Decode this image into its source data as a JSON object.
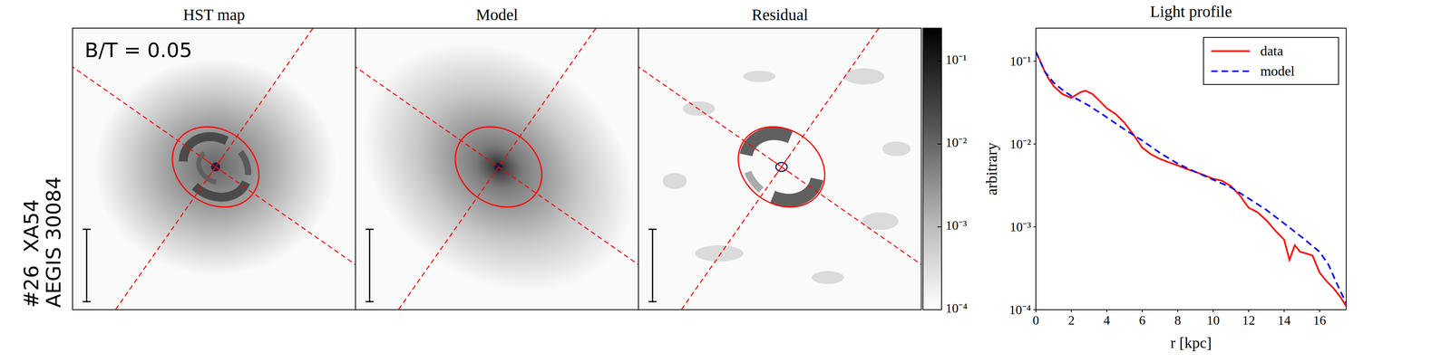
{
  "figure_label": [
    "#26  XA54",
    "AEGIS 30084"
  ],
  "panels": [
    {
      "title": "HST map",
      "annotation": "B/T = 0.05"
    },
    {
      "title": "Model"
    },
    {
      "title": "Residual"
    }
  ],
  "colorbar": {
    "lim": [
      0.0001,
      0.25
    ],
    "log": true,
    "ticks": [
      {
        "value": 0.0001,
        "label": "10⁻⁴"
      },
      {
        "value": 0.001,
        "label": "10⁻³"
      },
      {
        "value": 0.01,
        "label": "10⁻²"
      },
      {
        "value": 0.1,
        "label": "10⁻¹"
      }
    ]
  },
  "chart_data": {
    "type": "line",
    "title": "Light profile",
    "x_label": "r [kpc]",
    "y_label": "arbitrary",
    "xlim": [
      0,
      17.5
    ],
    "ylim": [
      0.0001,
      0.25
    ],
    "xticks": [
      0,
      2,
      4,
      6,
      8,
      10,
      12,
      14,
      16
    ],
    "yticks": [
      {
        "value": 0.0001,
        "label": "10⁻⁴"
      },
      {
        "value": 0.001,
        "label": "10⁻³"
      },
      {
        "value": 0.01,
        "label": "10⁻²"
      },
      {
        "value": 0.1,
        "label": "10⁻¹"
      }
    ],
    "log": "y",
    "legend": "upper right",
    "series": [
      {
        "name": "data",
        "color": "#ff0000",
        "line_style": "solid",
        "x": [
          0,
          0.25,
          0.5,
          0.75,
          1,
          1.5,
          2,
          2.5,
          2.8,
          3.2,
          3.6,
          4,
          4.5,
          5,
          5.5,
          6,
          6.5,
          7,
          7.5,
          8,
          8.5,
          9,
          9.5,
          10,
          10.5,
          11,
          11.5,
          12,
          12.5,
          13,
          13.5,
          14,
          14.3,
          14.6,
          14.9,
          15.2,
          15.6,
          16,
          16.4,
          16.8,
          17.2,
          17.5
        ],
        "values": [
          0.13,
          0.1,
          0.075,
          0.06,
          0.05,
          0.04,
          0.036,
          0.042,
          0.044,
          0.04,
          0.033,
          0.027,
          0.023,
          0.018,
          0.013,
          0.009,
          0.0075,
          0.0066,
          0.006,
          0.0055,
          0.005,
          0.0046,
          0.0042,
          0.0038,
          0.0036,
          0.0031,
          0.0024,
          0.0017,
          0.0015,
          0.0012,
          0.0009,
          0.0007,
          0.0004,
          0.0006,
          0.0005,
          0.00048,
          0.00045,
          0.00028,
          0.00022,
          0.00018,
          0.00014,
          0.00011
        ]
      },
      {
        "name": "model",
        "color": "#0000ff",
        "line_style": "dashed",
        "x": [
          0,
          0.5,
          1,
          1.5,
          2,
          3,
          4,
          5,
          6,
          7,
          8,
          9,
          10,
          11,
          12,
          13,
          14,
          15,
          16,
          16.5,
          17,
          17.5
        ],
        "values": [
          0.13,
          0.075,
          0.055,
          0.045,
          0.038,
          0.029,
          0.021,
          0.015,
          0.011,
          0.0078,
          0.0058,
          0.0046,
          0.0037,
          0.003,
          0.0022,
          0.0016,
          0.0011,
          0.00075,
          0.0005,
          0.00035,
          0.0002,
          0.00012
        ]
      }
    ]
  }
}
